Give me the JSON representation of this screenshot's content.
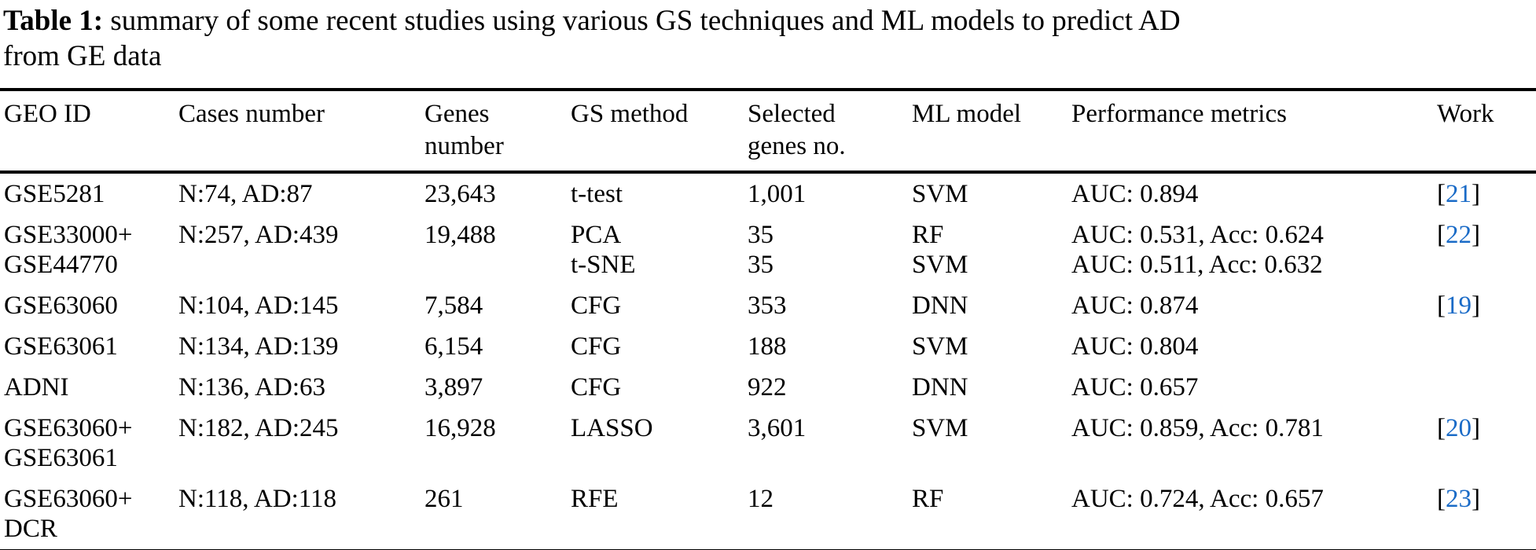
{
  "caption": {
    "label": "Table 1:",
    "text": " summary of some recent studies using various GS techniques and ML models to predict AD\nfrom GE data"
  },
  "colors": {
    "text": "#000000",
    "rule": "#000000",
    "citation_blue": "#1a6bc7",
    "background": "#ffffff"
  },
  "table": {
    "headers": {
      "geo": "GEO ID",
      "cases": "Cases number",
      "genes": "Genes\nnumber",
      "gs": "GS method",
      "selected": "Selected\ngenes no.",
      "ml": "ML model",
      "perf": "Performance metrics",
      "work": "Work"
    },
    "rows": [
      {
        "geo": "GSE5281",
        "cases": "N:74, AD:87",
        "genes": "23,643",
        "gs": "t-test",
        "selected": "1,001",
        "ml": "SVM",
        "perf": "AUC: 0.894",
        "work_open": "[",
        "work_num": "21",
        "work_close": "]"
      },
      {
        "geo": "GSE33000+\nGSE44770",
        "cases": "N:257, AD:439",
        "genes": "19,488",
        "gs": "PCA\nt-SNE",
        "selected": "35\n35",
        "ml": "RF\nSVM",
        "perf": "AUC: 0.531, Acc: 0.624\nAUC: 0.511, Acc: 0.632",
        "work_open": "[",
        "work_num": "22",
        "work_close": "]"
      },
      {
        "geo": "GSE63060",
        "cases": "N:104, AD:145",
        "genes": "7,584",
        "gs": "CFG",
        "selected": "353",
        "ml": "DNN",
        "perf": "AUC: 0.874",
        "work_open": "[",
        "work_num": "19",
        "work_close": "]"
      },
      {
        "geo": "GSE63061",
        "cases": "N:134, AD:139",
        "genes": "6,154",
        "gs": "CFG",
        "selected": "188",
        "ml": "SVM",
        "perf": "AUC: 0.804",
        "work_open": "",
        "work_num": "",
        "work_close": ""
      },
      {
        "geo": "ADNI",
        "cases": "N:136, AD:63",
        "genes": "3,897",
        "gs": "CFG",
        "selected": "922",
        "ml": "DNN",
        "perf": "AUC: 0.657",
        "work_open": "",
        "work_num": "",
        "work_close": ""
      },
      {
        "geo": "GSE63060+\nGSE63061",
        "cases": "N:182, AD:245",
        "genes": "16,928",
        "gs": "LASSO",
        "selected": "3,601",
        "ml": "SVM",
        "perf": "AUC: 0.859, Acc: 0.781",
        "work_open": "[",
        "work_num": "20",
        "work_close": "]"
      },
      {
        "geo": "GSE63060+\nDCR",
        "cases": "N:118, AD:118",
        "genes": "261",
        "gs": "RFE",
        "selected": "12",
        "ml": "RF",
        "perf": "AUC: 0.724, Acc: 0.657",
        "work_open": "[",
        "work_num": "23",
        "work_close": "]"
      }
    ]
  }
}
